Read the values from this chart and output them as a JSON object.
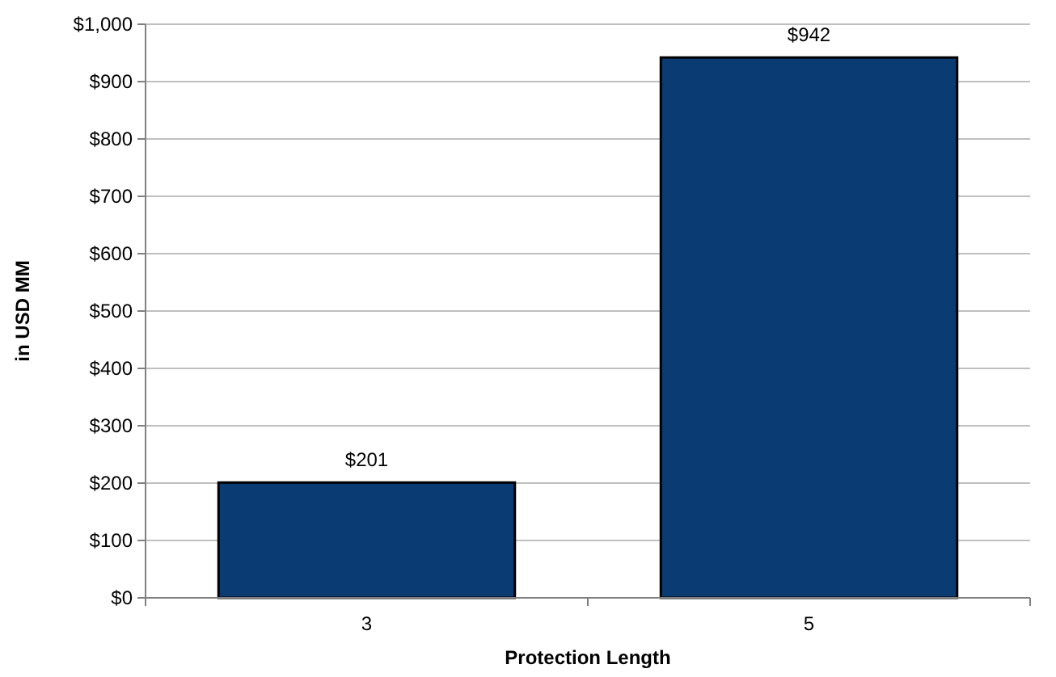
{
  "chart_data": {
    "type": "bar",
    "xlabel": "Protection Length",
    "ylabel": "in USD MM",
    "categories": [
      "3",
      "5"
    ],
    "values": [
      201,
      942
    ],
    "color": "#0b3b73",
    "value_labels": [
      "$201",
      "$942"
    ],
    "ylim": [
      0,
      1000
    ],
    "yticks": [
      {
        "value": 0,
        "label": "$0"
      },
      {
        "value": 100,
        "label": "$100"
      },
      {
        "value": 200,
        "label": "$200"
      },
      {
        "value": 300,
        "label": "$300"
      },
      {
        "value": 400,
        "label": "$400"
      },
      {
        "value": 500,
        "label": "$500"
      },
      {
        "value": 600,
        "label": "$600"
      },
      {
        "value": 700,
        "label": "$700"
      },
      {
        "value": 800,
        "label": "$800"
      },
      {
        "value": 900,
        "label": "$900"
      },
      {
        "value": 1000,
        "label": "$1,000"
      }
    ],
    "grid": "y"
  }
}
